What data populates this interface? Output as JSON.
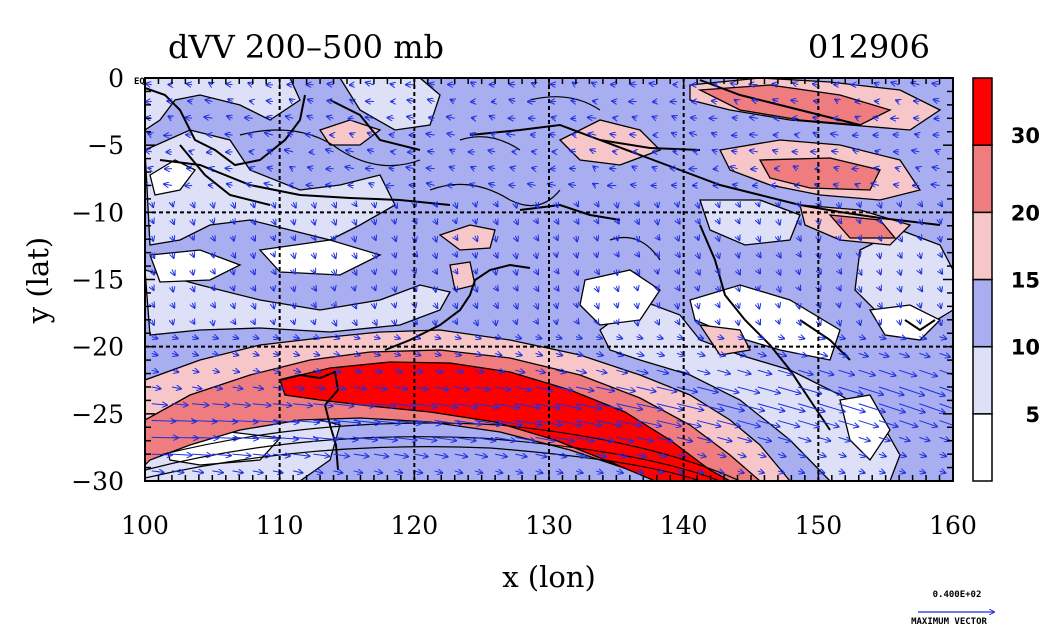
{
  "map": {
    "title_left": "dVV 200–500 mb",
    "title_right": "012906",
    "eq_label": "EQ",
    "xlabel": "x (lon)",
    "ylabel": "y (lat)",
    "x_ticks": [
      "100",
      "110",
      "120",
      "130",
      "140",
      "150",
      "160"
    ],
    "y_ticks": [
      "0",
      "−5",
      "−10",
      "−15",
      "−20",
      "−25",
      "−30"
    ],
    "x_range": [
      100,
      160
    ],
    "y_range": [
      -30,
      0
    ],
    "grid_lon": [
      110,
      120,
      130,
      140,
      150
    ],
    "grid_lat": [
      -10,
      -20
    ],
    "colorbar": {
      "labels": [
        "30",
        "20",
        "15",
        "10",
        "5"
      ],
      "levels": [
        0,
        5,
        10,
        15,
        20,
        30,
        35
      ],
      "colors": [
        "#ffffff",
        "#dde0f7",
        "#a8aef0",
        "#f6c6c8",
        "#ef7c7e",
        "#ff0000"
      ]
    },
    "vector_key": {
      "value": "0.400E+02",
      "label": "MAXIMUM VECTOR",
      "color": "#1f2fe0"
    },
    "colors": {
      "vector": "#1f2fe0",
      "coast": "#000000",
      "contour": "#000000"
    }
  }
}
